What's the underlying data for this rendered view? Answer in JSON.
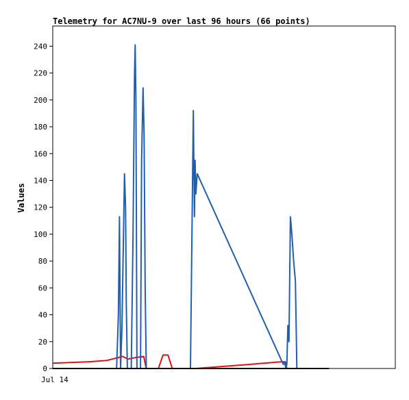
{
  "chart_data": {
    "type": "line",
    "title": "Telemetry for AC7NU-9 over last 96 hours (66 points)",
    "xlabel": "",
    "ylabel": "Values",
    "x_tick_labels": [
      "Jul 14"
    ],
    "y_ticks": [
      0,
      20,
      40,
      60,
      80,
      100,
      120,
      140,
      160,
      180,
      200,
      220,
      240
    ],
    "ylim": [
      0,
      255
    ],
    "xlim": [
      0,
      96
    ],
    "grid": false,
    "legend": "none",
    "series": [
      {
        "color": "#1f5fae",
        "x": [
          3.8,
          17.9,
          18.4,
          18.7,
          19.0,
          19.4,
          19.8,
          20.1,
          20.4,
          20.6,
          20.9,
          21.2,
          21.6,
          22.0,
          22.5,
          22.9,
          23.1,
          23.3,
          23.6,
          24.0,
          24.3,
          24.6,
          24.9,
          25.3,
          25.6,
          25.9,
          26.2,
          26.6,
          27.0,
          27.4,
          38.6,
          39.4,
          39.7,
          39.9,
          40.1,
          40.5,
          64.6,
          65.0,
          65.3,
          65.6,
          65.9,
          66.2,
          66.6,
          67.0,
          67.5,
          68.0,
          68.4,
          68.8,
          69.2,
          69.6,
          69.9,
          70.2,
          70.6,
          71.0,
          71.4,
          71.8,
          72.2,
          72.6,
          73.0,
          73.5,
          74.0,
          74.5,
          75.0,
          75.5,
          76.5,
          77.5
        ],
        "y": [
          0,
          0,
          40,
          113,
          0,
          30,
          95,
          145,
          120,
          50,
          0,
          0,
          0,
          0,
          100,
          217,
          241,
          200,
          0,
          0,
          0,
          0,
          155,
          209,
          175,
          60,
          0,
          0,
          0,
          0,
          0,
          192,
          113,
          155,
          130,
          145,
          3,
          5,
          0,
          3,
          32,
          20,
          113,
          100,
          80,
          65,
          0,
          0,
          0,
          0,
          0,
          0,
          0,
          0,
          0,
          0,
          0,
          0,
          0,
          0,
          0,
          0,
          0,
          0,
          0,
          0
        ]
      },
      {
        "color": "#e01010",
        "x": [
          0,
          5.0,
          10.0,
          15.2,
          19.6,
          21.0,
          23.0,
          25.5,
          26.2,
          29.6,
          30.9,
          32.3,
          33.5,
          40.0,
          55.0,
          64.0,
          65.2,
          65.6,
          66.2,
          66.8,
          67.6,
          68.3,
          68.8,
          69.3,
          69.6,
          70.0,
          70.3,
          71.0,
          71.5,
          72.0,
          72.5,
          73.0,
          73.5,
          74.5,
          75.5
        ],
        "y": [
          4,
          4.5,
          5,
          6,
          9,
          7,
          8,
          9,
          0,
          0,
          10,
          10,
          0,
          0,
          3,
          5,
          5,
          0,
          0,
          0,
          0,
          0,
          0,
          0,
          0,
          0,
          0,
          0,
          0,
          0,
          0,
          0,
          0,
          0,
          0
        ]
      }
    ]
  }
}
